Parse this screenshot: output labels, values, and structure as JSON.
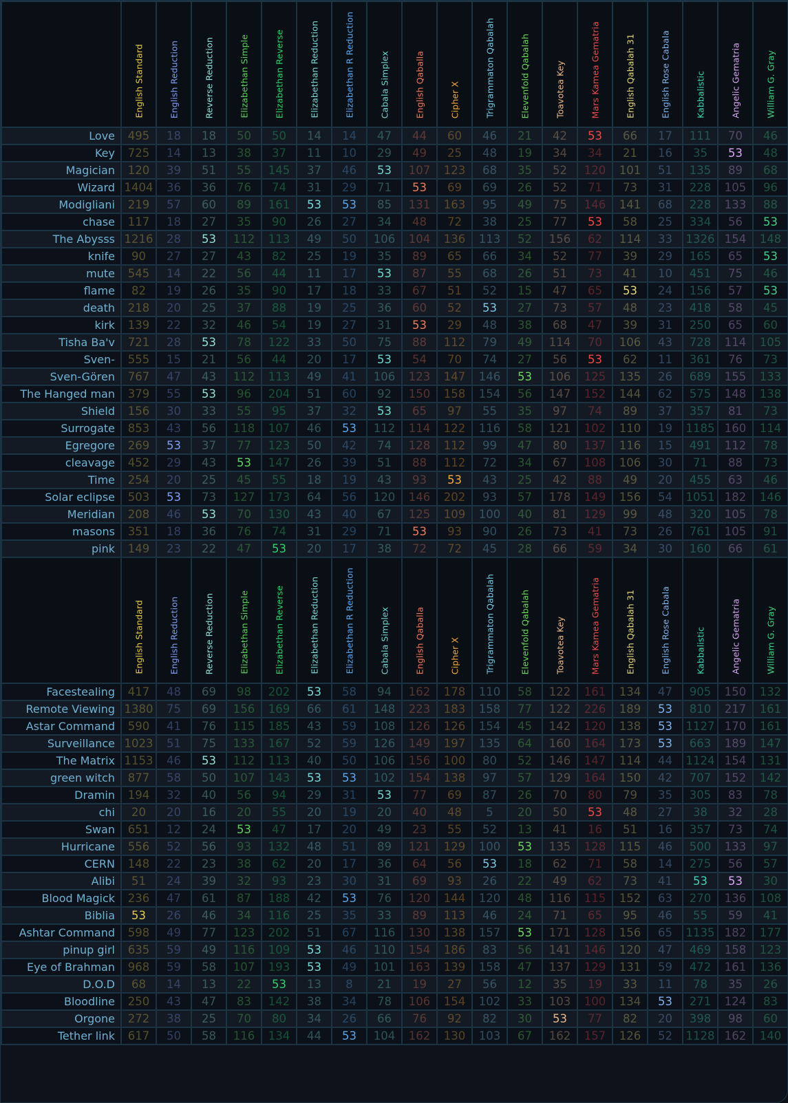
{
  "target_value": 53,
  "columns": [
    {
      "name": "English Standard",
      "color": "#e6c84e"
    },
    {
      "name": "English Reduction",
      "color": "#7e9ef0"
    },
    {
      "name": "Reverse Reduction",
      "color": "#8ee0d8"
    },
    {
      "name": "Elizabethan Simple",
      "color": "#5ad45a"
    },
    {
      "name": "Elizabethan Reverse",
      "color": "#2ed26a"
    },
    {
      "name": "Elizabethan Reduction",
      "color": "#7ad8d6"
    },
    {
      "name": "Elizabethan R Reduction",
      "color": "#5aa6ec"
    },
    {
      "name": "Cabala Simplex",
      "color": "#6fd6cf"
    },
    {
      "name": "English Qaballa",
      "color": "#ef7a5a"
    },
    {
      "name": "Cipher X",
      "color": "#f2a83c"
    },
    {
      "name": "Trigrammaton Qabalah",
      "color": "#78c8e6"
    },
    {
      "name": "Elevenfold Qabalah",
      "color": "#6ad65a"
    },
    {
      "name": "Toavotea Key",
      "color": "#e9b88a"
    },
    {
      "name": "Mars Kamea Gematria",
      "color": "#ef4a4a"
    },
    {
      "name": "English Qabalah 31",
      "color": "#e6d67a"
    },
    {
      "name": "English Rose Cabala",
      "color": "#7eb2ec"
    },
    {
      "name": "Kabbalistic",
      "color": "#3ed2b2"
    },
    {
      "name": "Angelic Gematria",
      "color": "#d8a6f0"
    },
    {
      "name": "William G. Gray",
      "color": "#3ed284"
    }
  ],
  "blocks": [
    {
      "rows": [
        {
          "word": "Love",
          "values": [
            495,
            18,
            18,
            50,
            50,
            14,
            14,
            47,
            44,
            60,
            46,
            21,
            42,
            53,
            66,
            17,
            111,
            70,
            46
          ]
        },
        {
          "word": "Key",
          "values": [
            725,
            14,
            13,
            38,
            37,
            11,
            10,
            29,
            49,
            25,
            48,
            19,
            34,
            34,
            21,
            16,
            35,
            53,
            48
          ]
        },
        {
          "word": "Magician",
          "values": [
            120,
            39,
            51,
            55,
            145,
            37,
            46,
            53,
            107,
            123,
            68,
            35,
            52,
            120,
            101,
            51,
            135,
            89,
            68
          ]
        },
        {
          "word": "Wizard",
          "values": [
            1404,
            36,
            36,
            76,
            74,
            31,
            29,
            71,
            53,
            69,
            69,
            26,
            52,
            71,
            73,
            31,
            228,
            105,
            96
          ]
        },
        {
          "word": "Modigliani",
          "values": [
            219,
            57,
            60,
            89,
            161,
            53,
            53,
            85,
            131,
            163,
            95,
            49,
            75,
            146,
            141,
            68,
            228,
            133,
            88
          ]
        },
        {
          "word": "chase",
          "values": [
            117,
            18,
            27,
            35,
            90,
            26,
            27,
            34,
            48,
            72,
            38,
            25,
            77,
            53,
            58,
            25,
            334,
            56,
            53
          ]
        },
        {
          "word": "The Abysss",
          "values": [
            1216,
            28,
            53,
            112,
            113,
            49,
            50,
            106,
            104,
            136,
            113,
            52,
            156,
            62,
            114,
            33,
            1326,
            154,
            148
          ]
        },
        {
          "word": "knife",
          "values": [
            90,
            27,
            27,
            43,
            82,
            25,
            19,
            35,
            89,
            65,
            66,
            34,
            52,
            77,
            39,
            29,
            165,
            65,
            53
          ]
        },
        {
          "word": "mute",
          "values": [
            545,
            14,
            22,
            56,
            44,
            11,
            17,
            53,
            87,
            55,
            68,
            26,
            51,
            73,
            41,
            10,
            451,
            75,
            46
          ]
        },
        {
          "word": "flame",
          "values": [
            82,
            19,
            26,
            35,
            90,
            17,
            18,
            33,
            67,
            51,
            52,
            15,
            47,
            65,
            53,
            24,
            156,
            57,
            53
          ]
        },
        {
          "word": "death",
          "values": [
            218,
            20,
            25,
            37,
            88,
            19,
            25,
            36,
            60,
            52,
            53,
            27,
            73,
            57,
            48,
            23,
            418,
            58,
            45
          ]
        },
        {
          "word": "kirk",
          "values": [
            139,
            22,
            32,
            46,
            54,
            19,
            27,
            31,
            53,
            29,
            48,
            38,
            68,
            47,
            39,
            31,
            250,
            65,
            60
          ]
        },
        {
          "word": "Tisha Ba'v",
          "values": [
            721,
            28,
            53,
            78,
            122,
            33,
            50,
            75,
            88,
            112,
            79,
            49,
            114,
            70,
            106,
            43,
            728,
            114,
            105
          ]
        },
        {
          "word": "Sven-",
          "values": [
            555,
            15,
            21,
            56,
            44,
            20,
            17,
            53,
            54,
            70,
            74,
            27,
            56,
            53,
            62,
            11,
            361,
            76,
            73
          ]
        },
        {
          "word": "Sven-Gören",
          "values": [
            767,
            47,
            43,
            112,
            113,
            49,
            41,
            106,
            123,
            147,
            146,
            53,
            106,
            125,
            135,
            26,
            689,
            155,
            133
          ]
        },
        {
          "word": "The Hanged man",
          "values": [
            379,
            55,
            53,
            96,
            204,
            51,
            60,
            92,
            150,
            158,
            154,
            56,
            147,
            152,
            144,
            62,
            575,
            148,
            138
          ]
        },
        {
          "word": "Shield",
          "values": [
            156,
            30,
            33,
            55,
            95,
            37,
            32,
            53,
            65,
            97,
            55,
            35,
            97,
            74,
            89,
            37,
            357,
            81,
            73
          ]
        },
        {
          "word": "Surrogate",
          "values": [
            853,
            43,
            56,
            118,
            107,
            46,
            53,
            112,
            114,
            122,
            116,
            58,
            121,
            102,
            110,
            19,
            1185,
            160,
            114
          ]
        },
        {
          "word": "Egregore",
          "values": [
            269,
            53,
            37,
            77,
            123,
            50,
            42,
            74,
            128,
            112,
            99,
            47,
            80,
            137,
            116,
            15,
            491,
            112,
            78
          ]
        },
        {
          "word": "cleavage",
          "values": [
            452,
            29,
            43,
            53,
            147,
            26,
            39,
            51,
            88,
            112,
            72,
            34,
            67,
            108,
            106,
            30,
            71,
            88,
            73
          ]
        },
        {
          "word": "Time",
          "values": [
            254,
            20,
            25,
            45,
            55,
            18,
            19,
            43,
            93,
            53,
            43,
            25,
            42,
            88,
            49,
            20,
            455,
            63,
            46
          ]
        },
        {
          "word": "Solar eclipse",
          "values": [
            503,
            53,
            73,
            127,
            173,
            64,
            56,
            120,
            146,
            202,
            93,
            57,
            178,
            149,
            156,
            54,
            1051,
            182,
            146
          ]
        },
        {
          "word": "Meridian",
          "values": [
            208,
            46,
            53,
            70,
            130,
            43,
            40,
            67,
            125,
            109,
            100,
            40,
            81,
            129,
            99,
            48,
            320,
            105,
            78
          ]
        },
        {
          "word": "masons",
          "values": [
            351,
            18,
            36,
            76,
            74,
            31,
            29,
            71,
            53,
            93,
            90,
            26,
            73,
            41,
            73,
            26,
            761,
            105,
            91
          ]
        },
        {
          "word": "pink",
          "values": [
            149,
            23,
            22,
            47,
            53,
            20,
            17,
            38,
            72,
            72,
            45,
            28,
            66,
            59,
            34,
            30,
            160,
            66,
            61
          ]
        }
      ]
    },
    {
      "rows": [
        {
          "word": "Facestealing",
          "values": [
            417,
            48,
            69,
            98,
            202,
            53,
            58,
            94,
            162,
            178,
            110,
            58,
            122,
            161,
            134,
            47,
            905,
            150,
            132
          ]
        },
        {
          "word": "Remote Viewing",
          "values": [
            1380,
            75,
            69,
            156,
            169,
            66,
            61,
            148,
            223,
            183,
            158,
            77,
            122,
            226,
            189,
            53,
            810,
            217,
            161
          ]
        },
        {
          "word": "Astar Command",
          "values": [
            590,
            41,
            76,
            115,
            185,
            43,
            59,
            108,
            126,
            126,
            154,
            45,
            142,
            120,
            138,
            53,
            1127,
            170,
            161
          ]
        },
        {
          "word": "Surveillance",
          "values": [
            1023,
            51,
            75,
            133,
            167,
            52,
            59,
            126,
            149,
            197,
            135,
            64,
            160,
            164,
            173,
            53,
            663,
            189,
            147
          ]
        },
        {
          "word": "The Matrix",
          "values": [
            1153,
            46,
            53,
            112,
            113,
            40,
            50,
            106,
            156,
            100,
            80,
            52,
            146,
            147,
            114,
            44,
            1124,
            154,
            131
          ]
        },
        {
          "word": "green witch",
          "values": [
            877,
            58,
            50,
            107,
            143,
            53,
            53,
            102,
            154,
            138,
            97,
            57,
            129,
            164,
            150,
            42,
            707,
            152,
            142
          ]
        },
        {
          "word": "Dramin",
          "values": [
            194,
            32,
            40,
            56,
            94,
            29,
            31,
            53,
            77,
            69,
            87,
            26,
            70,
            80,
            79,
            35,
            305,
            83,
            78
          ]
        },
        {
          "word": "chi",
          "values": [
            20,
            20,
            16,
            20,
            55,
            20,
            19,
            20,
            40,
            48,
            5,
            20,
            50,
            53,
            48,
            27,
            38,
            32,
            28
          ]
        },
        {
          "word": "Swan",
          "values": [
            651,
            12,
            24,
            53,
            47,
            17,
            20,
            49,
            23,
            55,
            52,
            13,
            41,
            16,
            51,
            16,
            357,
            73,
            74
          ]
        },
        {
          "word": "Hurricane",
          "values": [
            556,
            52,
            56,
            93,
            132,
            48,
            51,
            89,
            121,
            129,
            100,
            53,
            135,
            128,
            115,
            46,
            500,
            133,
            97
          ]
        },
        {
          "word": "CERN",
          "values": [
            148,
            22,
            23,
            38,
            62,
            20,
            17,
            36,
            64,
            56,
            53,
            18,
            62,
            71,
            58,
            14,
            275,
            56,
            57
          ]
        },
        {
          "word": "Alibi",
          "values": [
            51,
            24,
            39,
            32,
            93,
            23,
            30,
            31,
            69,
            93,
            26,
            22,
            49,
            62,
            73,
            41,
            53,
            53,
            30
          ]
        },
        {
          "word": "Blood Magick",
          "values": [
            236,
            47,
            61,
            87,
            188,
            42,
            53,
            76,
            120,
            144,
            120,
            48,
            116,
            115,
            152,
            63,
            270,
            136,
            108
          ]
        },
        {
          "word": "Biblia",
          "values": [
            53,
            26,
            46,
            34,
            116,
            25,
            35,
            33,
            89,
            113,
            46,
            24,
            71,
            65,
            95,
            46,
            55,
            59,
            41
          ]
        },
        {
          "word": "Ashtar Command",
          "values": [
            598,
            49,
            77,
            123,
            202,
            51,
            67,
            116,
            130,
            138,
            157,
            53,
            171,
            128,
            156,
            65,
            1135,
            182,
            177
          ]
        },
        {
          "word": "pinup girl",
          "values": [
            635,
            59,
            49,
            116,
            109,
            53,
            46,
            110,
            154,
            186,
            83,
            56,
            141,
            146,
            120,
            47,
            469,
            158,
            123
          ]
        },
        {
          "word": "Eye of Brahman",
          "values": [
            968,
            59,
            58,
            107,
            193,
            53,
            49,
            101,
            163,
            139,
            158,
            47,
            137,
            129,
            131,
            59,
            472,
            161,
            136
          ]
        },
        {
          "word": "D.O.D",
          "values": [
            68,
            14,
            13,
            22,
            53,
            13,
            8,
            21,
            19,
            27,
            56,
            12,
            35,
            19,
            33,
            11,
            78,
            35,
            26
          ]
        },
        {
          "word": "Bloodline",
          "values": [
            250,
            43,
            47,
            83,
            142,
            38,
            34,
            78,
            106,
            154,
            102,
            33,
            103,
            100,
            134,
            53,
            271,
            124,
            83
          ]
        },
        {
          "word": "Orgone",
          "values": [
            272,
            38,
            25,
            70,
            80,
            34,
            26,
            66,
            76,
            92,
            82,
            30,
            53,
            77,
            82,
            20,
            398,
            98,
            60
          ]
        },
        {
          "word": "Tether link",
          "values": [
            617,
            50,
            58,
            116,
            134,
            44,
            53,
            104,
            162,
            130,
            103,
            67,
            162,
            157,
            126,
            52,
            1128,
            162,
            140
          ]
        }
      ]
    }
  ]
}
